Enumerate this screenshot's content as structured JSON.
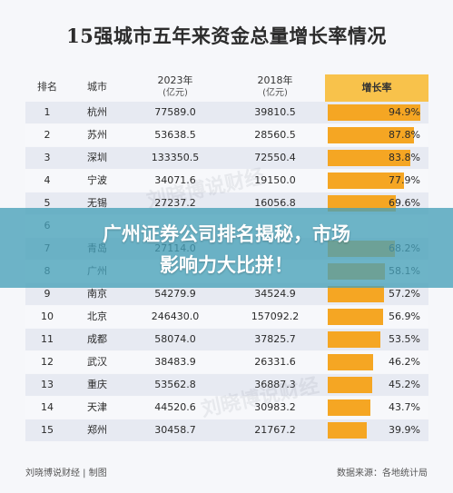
{
  "page_title": "15强城市五年来资金总量增长率情况",
  "headers": {
    "rank": "排名",
    "city": "城市",
    "y2023": "2023年",
    "y2023_unit": "(亿元)",
    "y2018": "2018年",
    "y2018_unit": "(亿元)",
    "growth": "增长率"
  },
  "chart_data": {
    "type": "table",
    "title": "15强城市五年来资金总量增长率情况",
    "columns": [
      "排名",
      "城市",
      "2023年(亿元)",
      "2018年(亿元)",
      "增长率"
    ],
    "rows": [
      {
        "rank": "1",
        "city": "杭州",
        "v2023": "77589.0",
        "v2018": "39810.5",
        "growth": "94.9%",
        "growth_value": 94.9
      },
      {
        "rank": "2",
        "city": "苏州",
        "v2023": "53638.5",
        "v2018": "28560.5",
        "growth": "87.8%",
        "growth_value": 87.8
      },
      {
        "rank": "3",
        "city": "深圳",
        "v2023": "133350.5",
        "v2018": "72550.4",
        "growth": "83.8%",
        "growth_value": 83.8
      },
      {
        "rank": "4",
        "city": "宁波",
        "v2023": "34071.6",
        "v2018": "19150.0",
        "growth": "77.9%",
        "growth_value": 77.9
      },
      {
        "rank": "5",
        "city": "无锡",
        "v2023": "27237.2",
        "v2018": "16056.8",
        "growth": "69.6%",
        "growth_value": 69.6
      },
      {
        "rank": "6",
        "city": "",
        "v2023": "",
        "v2018": "",
        "growth": "",
        "growth_value": 0
      },
      {
        "rank": "7",
        "city": "青岛",
        "v2023": "27114.0",
        "v2018": "",
        "growth": "68.2%",
        "growth_value": 68.2
      },
      {
        "rank": "8",
        "city": "广州",
        "v2023": "",
        "v2018": "",
        "growth": "58.1%",
        "growth_value": 58.1
      },
      {
        "rank": "9",
        "city": "南京",
        "v2023": "54279.9",
        "v2018": "34524.9",
        "growth": "57.2%",
        "growth_value": 57.2
      },
      {
        "rank": "10",
        "city": "北京",
        "v2023": "246430.0",
        "v2018": "157092.2",
        "growth": "56.9%",
        "growth_value": 56.9
      },
      {
        "rank": "11",
        "city": "成都",
        "v2023": "58074.0",
        "v2018": "37825.7",
        "growth": "53.5%",
        "growth_value": 53.5
      },
      {
        "rank": "12",
        "city": "武汉",
        "v2023": "38483.9",
        "v2018": "26331.6",
        "growth": "46.2%",
        "growth_value": 46.2
      },
      {
        "rank": "13",
        "city": "重庆",
        "v2023": "53562.8",
        "v2018": "36887.3",
        "growth": "45.2%",
        "growth_value": 45.2
      },
      {
        "rank": "14",
        "city": "天津",
        "v2023": "44520.6",
        "v2018": "30983.2",
        "growth": "43.7%",
        "growth_value": 43.7
      },
      {
        "rank": "15",
        "city": "郑州",
        "v2023": "30458.7",
        "v2018": "21767.2",
        "growth": "39.9%",
        "growth_value": 39.9
      }
    ],
    "growth_max": 100,
    "bar_color": "#f5a623"
  },
  "watermark": "刘晓博说财经",
  "footer": {
    "left": "刘晓博说财经 | 制图",
    "right": "数据来源：各地统计局"
  },
  "banner": {
    "line1": "广州证券公司排名揭秘，市场",
    "line2": "影响力大比拼！"
  },
  "colors": {
    "accent": "#f8c24b",
    "bar": "#f5a623",
    "banner": "#46a0b9"
  }
}
